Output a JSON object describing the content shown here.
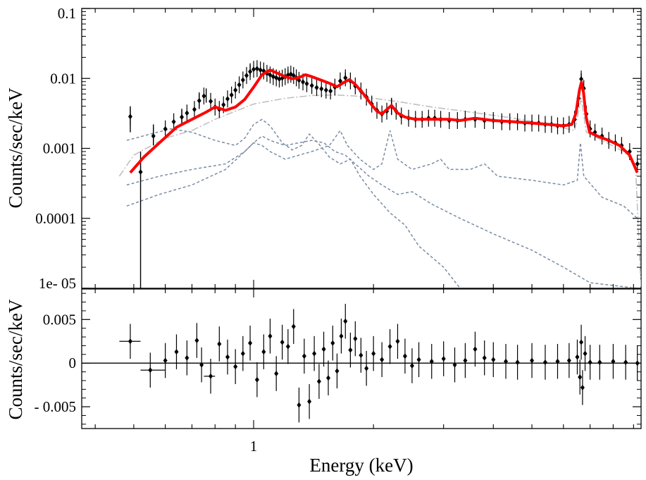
{
  "chart_data": [
    {
      "panel": "spectrum",
      "type": "scatter",
      "ylabel": "Counts/sec/keV",
      "yscale": "log",
      "xscale": "log",
      "ylim": [
        1e-05,
        0.1
      ],
      "xlim": [
        0.37,
        9.4
      ],
      "y_tick_labels": [
        "0.1",
        "0.01",
        "0.001",
        "0.0001",
        "1e- 05"
      ],
      "colors": {
        "data": "#000000",
        "total_model": "#ff0000",
        "components": "#7a8ca3",
        "continuum": "#c0c0c0"
      },
      "data_points": [
        [
          0.49,
          0.00285
        ],
        [
          0.52,
          0.00046
        ],
        [
          0.56,
          0.0015
        ],
        [
          0.6,
          0.0019
        ],
        [
          0.63,
          0.0024
        ],
        [
          0.66,
          0.0028
        ],
        [
          0.68,
          0.0032
        ],
        [
          0.71,
          0.0036
        ],
        [
          0.73,
          0.0048
        ],
        [
          0.75,
          0.0056
        ],
        [
          0.78,
          0.0047
        ],
        [
          0.8,
          0.0039
        ],
        [
          0.82,
          0.0036
        ],
        [
          0.84,
          0.0042
        ],
        [
          0.86,
          0.0051
        ],
        [
          0.88,
          0.0058
        ],
        [
          0.9,
          0.0068
        ],
        [
          0.92,
          0.0081
        ],
        [
          0.94,
          0.0095
        ],
        [
          0.96,
          0.011
        ],
        [
          0.98,
          0.0125
        ],
        [
          1.0,
          0.0135
        ],
        [
          1.02,
          0.0138
        ],
        [
          1.04,
          0.0132
        ],
        [
          1.06,
          0.0128
        ],
        [
          1.08,
          0.0118
        ],
        [
          1.1,
          0.0112
        ],
        [
          1.12,
          0.0106
        ],
        [
          1.14,
          0.0102
        ],
        [
          1.16,
          0.0098
        ],
        [
          1.18,
          0.0101
        ],
        [
          1.2,
          0.0106
        ],
        [
          1.22,
          0.0112
        ],
        [
          1.24,
          0.0115
        ],
        [
          1.26,
          0.011
        ],
        [
          1.28,
          0.0102
        ],
        [
          1.3,
          0.0094
        ],
        [
          1.33,
          0.0089
        ],
        [
          1.36,
          0.0084
        ],
        [
          1.4,
          0.0079
        ],
        [
          1.44,
          0.0074
        ],
        [
          1.48,
          0.0071
        ],
        [
          1.52,
          0.0068
        ],
        [
          1.56,
          0.0066
        ],
        [
          1.6,
          0.0075
        ],
        [
          1.65,
          0.0092
        ],
        [
          1.7,
          0.0102
        ],
        [
          1.75,
          0.0092
        ],
        [
          1.8,
          0.0078
        ],
        [
          1.86,
          0.0066
        ],
        [
          1.92,
          0.0054
        ],
        [
          1.98,
          0.0043
        ],
        [
          2.04,
          0.0035
        ],
        [
          2.1,
          0.0031
        ],
        [
          2.16,
          0.0034
        ],
        [
          2.22,
          0.004
        ],
        [
          2.28,
          0.0034
        ],
        [
          2.35,
          0.0029
        ],
        [
          2.45,
          0.0027
        ],
        [
          2.55,
          0.0026
        ],
        [
          2.65,
          0.0026
        ],
        [
          2.75,
          0.0027
        ],
        [
          2.85,
          0.0027
        ],
        [
          2.95,
          0.0026
        ],
        [
          3.1,
          0.0025
        ],
        [
          3.25,
          0.0025
        ],
        [
          3.4,
          0.0026
        ],
        [
          3.6,
          0.0026
        ],
        [
          3.8,
          0.0025
        ],
        [
          4.0,
          0.0025
        ],
        [
          4.2,
          0.0024
        ],
        [
          4.4,
          0.0024
        ],
        [
          4.6,
          0.0024
        ],
        [
          4.8,
          0.0023
        ],
        [
          5.0,
          0.0023
        ],
        [
          5.2,
          0.0023
        ],
        [
          5.4,
          0.0022
        ],
        [
          5.6,
          0.0022
        ],
        [
          5.8,
          0.0021
        ],
        [
          6.0,
          0.0021
        ],
        [
          6.2,
          0.0022
        ],
        [
          6.4,
          0.0026
        ],
        [
          6.55,
          0.0052
        ],
        [
          6.65,
          0.0098
        ],
        [
          6.75,
          0.0072
        ],
        [
          6.85,
          0.0031
        ],
        [
          7.0,
          0.0019
        ],
        [
          7.2,
          0.0017
        ],
        [
          7.5,
          0.0015
        ],
        [
          7.8,
          0.0013
        ],
        [
          8.1,
          0.0012
        ],
        [
          8.4,
          0.0011
        ],
        [
          8.8,
          0.0009
        ],
        [
          9.2,
          0.0006
        ]
      ],
      "error_bars": [
        [
          0.49,
          0.0017,
          0.004
        ],
        [
          0.52,
          1e-05,
          0.0009
        ],
        [
          0.56,
          0.0011,
          0.0022
        ],
        [
          0.66,
          0.0022,
          0.0036
        ],
        [
          0.73,
          0.0038,
          0.0061
        ],
        [
          0.76,
          0.0045,
          0.0072
        ],
        [
          0.98,
          0.0105,
          0.0158
        ],
        [
          1.22,
          0.0094,
          0.0135
        ],
        [
          1.7,
          0.0085,
          0.0122
        ],
        [
          2.22,
          0.003,
          0.0052
        ],
        [
          6.65,
          0.0082,
          0.0117
        ]
      ],
      "total_model": [
        [
          0.49,
          0.00045
        ],
        [
          0.53,
          0.00075
        ],
        [
          0.58,
          0.0012
        ],
        [
          0.64,
          0.002
        ],
        [
          0.7,
          0.0026
        ],
        [
          0.76,
          0.0033
        ],
        [
          0.8,
          0.0039
        ],
        [
          0.85,
          0.0035
        ],
        [
          0.9,
          0.0039
        ],
        [
          0.95,
          0.005
        ],
        [
          1.0,
          0.0075
        ],
        [
          1.05,
          0.0113
        ],
        [
          1.1,
          0.0132
        ],
        [
          1.15,
          0.0118
        ],
        [
          1.2,
          0.0106
        ],
        [
          1.25,
          0.0099
        ],
        [
          1.3,
          0.0103
        ],
        [
          1.35,
          0.0113
        ],
        [
          1.4,
          0.0106
        ],
        [
          1.48,
          0.0094
        ],
        [
          1.56,
          0.0084
        ],
        [
          1.62,
          0.0076
        ],
        [
          1.68,
          0.0087
        ],
        [
          1.74,
          0.0096
        ],
        [
          1.8,
          0.0082
        ],
        [
          1.88,
          0.0062
        ],
        [
          1.96,
          0.0045
        ],
        [
          2.04,
          0.0034
        ],
        [
          2.1,
          0.0031
        ],
        [
          2.16,
          0.0036
        ],
        [
          2.22,
          0.0041
        ],
        [
          2.3,
          0.0032
        ],
        [
          2.4,
          0.0028
        ],
        [
          2.55,
          0.0026
        ],
        [
          2.8,
          0.0026
        ],
        [
          3.1,
          0.0026
        ],
        [
          3.3,
          0.0025
        ],
        [
          3.6,
          0.0027
        ],
        [
          4.0,
          0.0025
        ],
        [
          4.5,
          0.0024
        ],
        [
          5.0,
          0.0023
        ],
        [
          5.5,
          0.0022
        ],
        [
          6.0,
          0.0021
        ],
        [
          6.3,
          0.0022
        ],
        [
          6.45,
          0.0032
        ],
        [
          6.58,
          0.0068
        ],
        [
          6.66,
          0.0089
        ],
        [
          6.74,
          0.0062
        ],
        [
          6.84,
          0.0028
        ],
        [
          6.98,
          0.0017
        ],
        [
          7.3,
          0.0015
        ],
        [
          7.8,
          0.0013
        ],
        [
          8.3,
          0.0011
        ],
        [
          8.8,
          0.0008
        ],
        [
          9.2,
          0.00045
        ]
      ],
      "continuum_component": [
        [
          0.46,
          0.0004
        ],
        [
          0.5,
          0.0008
        ],
        [
          0.6,
          0.0014
        ],
        [
          0.7,
          0.0018
        ],
        [
          0.8,
          0.0026
        ],
        [
          0.9,
          0.0034
        ],
        [
          1.0,
          0.0043
        ],
        [
          1.2,
          0.0052
        ],
        [
          1.4,
          0.0057
        ],
        [
          1.6,
          0.0058
        ],
        [
          1.8,
          0.0056
        ],
        [
          2.0,
          0.0052
        ],
        [
          2.4,
          0.0045
        ],
        [
          2.8,
          0.0039
        ],
        [
          3.5,
          0.0033
        ],
        [
          4.5,
          0.0027
        ],
        [
          5.5,
          0.0022
        ],
        [
          6.4,
          0.0018
        ],
        [
          6.65,
          0.0052
        ],
        [
          6.85,
          0.0017
        ],
        [
          7.5,
          0.0013
        ],
        [
          8.5,
          0.0009
        ],
        [
          9.1,
          0.0006
        ],
        [
          9.4,
          1e-05
        ]
      ],
      "component_1": [
        [
          0.48,
          0.0013
        ],
        [
          0.55,
          0.0016
        ],
        [
          0.62,
          0.0019
        ],
        [
          0.7,
          0.0017
        ],
        [
          0.8,
          0.0013
        ],
        [
          0.9,
          0.0011
        ],
        [
          0.95,
          0.0014
        ],
        [
          1.0,
          0.0022
        ],
        [
          1.05,
          0.0026
        ],
        [
          1.1,
          0.0021
        ],
        [
          1.18,
          0.0012
        ],
        [
          1.25,
          0.00095
        ],
        [
          1.32,
          0.0011
        ],
        [
          1.38,
          0.0016
        ],
        [
          1.45,
          0.0012
        ],
        [
          1.55,
          0.00075
        ],
        [
          1.65,
          0.0006
        ],
        [
          1.75,
          0.0007
        ],
        [
          1.85,
          0.0004
        ],
        [
          2.0,
          0.00022
        ],
        [
          2.2,
          0.00012
        ],
        [
          2.4,
          8e-05
        ],
        [
          2.6,
          4e-05
        ],
        [
          3.0,
          2e-05
        ],
        [
          3.3,
          1e-05
        ]
      ],
      "component_2": [
        [
          0.48,
          0.0003
        ],
        [
          0.58,
          0.0004
        ],
        [
          0.7,
          0.0005
        ],
        [
          0.85,
          0.0006
        ],
        [
          0.95,
          0.0009
        ],
        [
          1.0,
          0.0012
        ],
        [
          1.05,
          0.0015
        ],
        [
          1.1,
          0.0013
        ],
        [
          1.2,
          0.0011
        ],
        [
          1.3,
          0.0012
        ],
        [
          1.4,
          0.0013
        ],
        [
          1.5,
          0.0012
        ],
        [
          1.6,
          0.0009
        ],
        [
          1.7,
          0.0008
        ],
        [
          1.8,
          0.0006
        ],
        [
          1.95,
          0.0004
        ],
        [
          2.1,
          0.0003
        ],
        [
          2.3,
          0.00022
        ],
        [
          2.5,
          0.00024
        ],
        [
          2.8,
          0.00016
        ],
        [
          3.3,
          0.0001
        ],
        [
          4.0,
          6e-05
        ],
        [
          5.0,
          3.5e-05
        ],
        [
          6.0,
          2e-05
        ],
        [
          7.0,
          1.2e-05
        ],
        [
          9.2,
          1e-05
        ]
      ],
      "component_3": [
        [
          0.48,
          0.00015
        ],
        [
          0.58,
          0.00022
        ],
        [
          0.7,
          0.0003
        ],
        [
          0.85,
          0.0005
        ],
        [
          0.95,
          0.0009
        ],
        [
          1.0,
          0.0012
        ],
        [
          1.05,
          0.0011
        ],
        [
          1.1,
          0.0009
        ],
        [
          1.2,
          0.0007
        ],
        [
          1.3,
          0.0008
        ],
        [
          1.4,
          0.0009
        ],
        [
          1.55,
          0.0011
        ],
        [
          1.65,
          0.0018
        ],
        [
          1.72,
          0.0011
        ],
        [
          1.85,
          0.0007
        ],
        [
          2.0,
          0.0005
        ],
        [
          2.1,
          0.0006
        ],
        [
          2.2,
          0.0018
        ],
        [
          2.3,
          0.0007
        ],
        [
          2.5,
          0.0005
        ],
        [
          2.8,
          0.0006
        ],
        [
          2.95,
          0.0007
        ],
        [
          3.1,
          0.0005
        ],
        [
          3.5,
          0.0005
        ],
        [
          3.8,
          0.0006
        ],
        [
          4.1,
          0.0004
        ],
        [
          5.0,
          0.00035
        ],
        [
          6.0,
          0.0003
        ],
        [
          6.5,
          0.00035
        ],
        [
          6.62,
          0.0012
        ],
        [
          6.75,
          0.0004
        ],
        [
          7.5,
          0.0002
        ],
        [
          8.5,
          0.00015
        ],
        [
          9.2,
          0.0001
        ]
      ]
    },
    {
      "panel": "residuals",
      "type": "scatter",
      "xlabel": "Energy (keV)",
      "ylabel": "Counts/sec/keV",
      "xscale": "log",
      "xlim": [
        0.37,
        9.4
      ],
      "ylim": [
        -0.0075,
        0.0085
      ],
      "y_ticks": [
        0.005,
        0,
        -0.005
      ],
      "y_tick_labels": [
        "0.005",
        "0",
        "- 0.005"
      ],
      "x_ticks": [
        1
      ],
      "x_tick_labels": [
        "1"
      ],
      "zero_line": true,
      "points": [
        [
          0.49,
          0.0025
        ],
        [
          0.55,
          -0.0008
        ],
        [
          0.6,
          0.0003
        ],
        [
          0.64,
          0.0013
        ],
        [
          0.68,
          0.0006
        ],
        [
          0.72,
          0.0026
        ],
        [
          0.74,
          -0.0002
        ],
        [
          0.78,
          -0.0015
        ],
        [
          0.82,
          0.0022
        ],
        [
          0.86,
          0.0007
        ],
        [
          0.9,
          -0.0004
        ],
        [
          0.94,
          0.0011
        ],
        [
          0.98,
          0.0023
        ],
        [
          1.02,
          -0.0019
        ],
        [
          1.06,
          0.0013
        ],
        [
          1.1,
          0.0031
        ],
        [
          1.14,
          -0.0012
        ],
        [
          1.18,
          0.0024
        ],
        [
          1.22,
          0.0019
        ],
        [
          1.26,
          0.0042
        ],
        [
          1.3,
          -0.0048
        ],
        [
          1.34,
          0.0008
        ],
        [
          1.38,
          -0.0044
        ],
        [
          1.42,
          0.0011
        ],
        [
          1.46,
          -0.0021
        ],
        [
          1.5,
          0.0016
        ],
        [
          1.54,
          -0.0017
        ],
        [
          1.58,
          0.0023
        ],
        [
          1.62,
          -0.0009
        ],
        [
          1.66,
          0.0031
        ],
        [
          1.7,
          0.0048
        ],
        [
          1.75,
          0.0015
        ],
        [
          1.8,
          0.0028
        ],
        [
          1.86,
          0.0009
        ],
        [
          1.92,
          -0.0006
        ],
        [
          2.0,
          0.0011
        ],
        [
          2.1,
          0.0004
        ],
        [
          2.2,
          0.0019
        ],
        [
          2.3,
          0.0025
        ],
        [
          2.4,
          0.0008
        ],
        [
          2.5,
          -0.0003
        ],
        [
          2.6,
          0.0004
        ],
        [
          2.8,
          0.0002
        ],
        [
          3.0,
          0.0005
        ],
        [
          3.2,
          -0.0002
        ],
        [
          3.4,
          0.0003
        ],
        [
          3.6,
          0.0016
        ],
        [
          3.8,
          0.0006
        ],
        [
          4.0,
          0.0004
        ],
        [
          4.3,
          0.0002
        ],
        [
          4.6,
          0.0001
        ],
        [
          5.0,
          0.0003
        ],
        [
          5.4,
          0.0001
        ],
        [
          5.8,
          0.0002
        ],
        [
          6.2,
          0.0003
        ],
        [
          6.5,
          0.0007
        ],
        [
          6.6,
          -0.0016
        ],
        [
          6.65,
          0.0024
        ],
        [
          6.7,
          -0.0028
        ],
        [
          6.8,
          0.0011
        ],
        [
          7.0,
          0.0001
        ],
        [
          7.4,
          0.0001
        ],
        [
          8.0,
          0.0002
        ],
        [
          8.6,
          0.0001
        ],
        [
          9.2,
          0.0
        ]
      ],
      "x_error_spans": [
        [
          0.46,
          0.52,
          0.0025
        ],
        [
          0.52,
          0.6,
          -0.0008
        ],
        [
          0.75,
          0.8,
          -0.0015
        ]
      ]
    }
  ]
}
